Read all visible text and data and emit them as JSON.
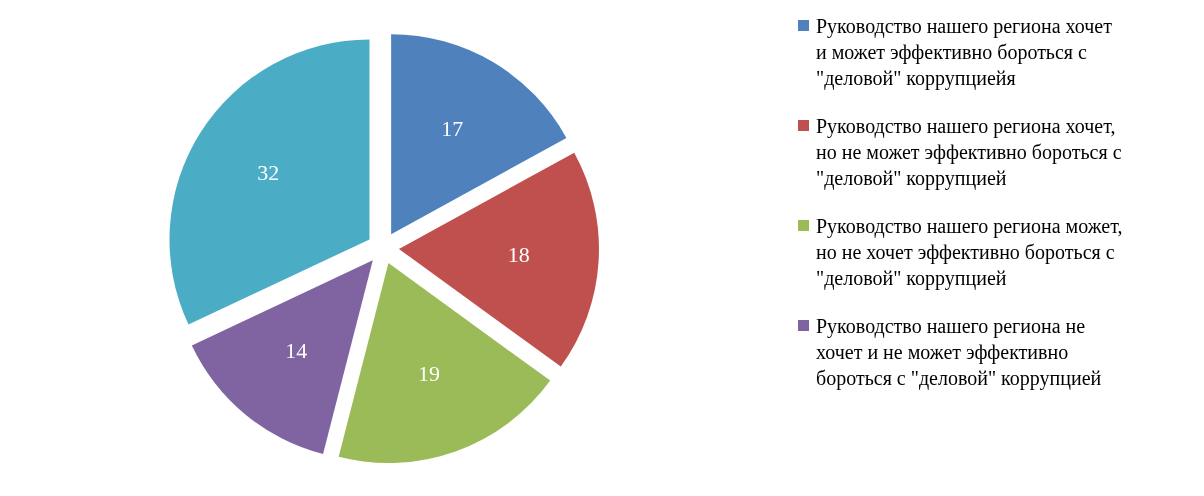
{
  "chart_data": {
    "type": "pie",
    "categories": [
      "Руководство нашего региона хочет и может эффективно бороться с \"деловой\" коррупциейя",
      "Руководство нашего региона хочет, но не может эффективно бороться с \"деловой\" коррупцией",
      "Руководство нашего региона может, но не хочет эффективно бороться с \"деловой\" коррупцией",
      "Руководство нашего региона не хочет и не может эффективно бороться с \"деловой\" коррупцией",
      null
    ],
    "values": [
      17,
      18,
      19,
      14,
      32
    ],
    "colors": [
      "#4f81bd",
      "#c0504d",
      "#9bbb59",
      "#8064a2",
      "#4bacc6"
    ],
    "data_labels": true,
    "legend": "right"
  }
}
